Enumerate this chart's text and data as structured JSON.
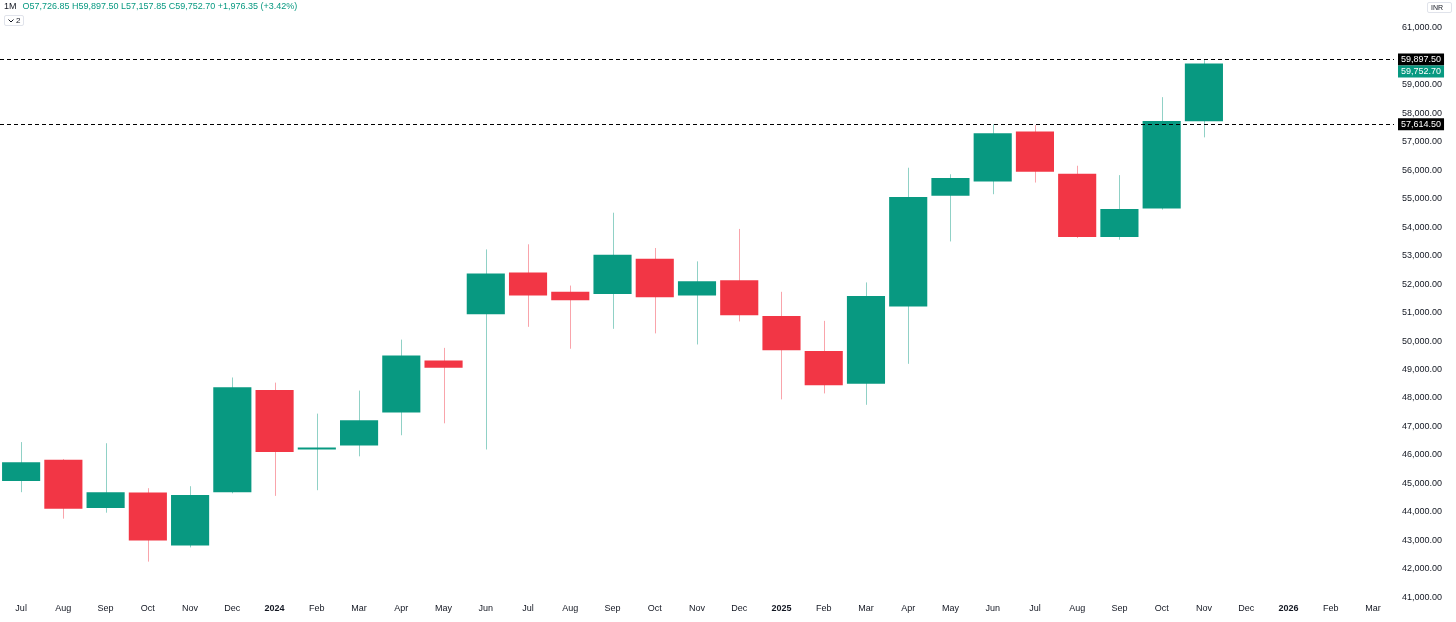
{
  "chart_data": {
    "type": "candlestick",
    "categories": [
      "Jul",
      "Aug",
      "Sep",
      "Oct",
      "Nov",
      "Dec",
      "2024",
      "Feb",
      "Mar",
      "Apr",
      "May",
      "Jun",
      "Jul",
      "Aug",
      "Sep",
      "Oct",
      "Nov",
      "Dec",
      "2025",
      "Feb",
      "Mar",
      "Apr",
      "May",
      "Jun",
      "Jul",
      "Aug",
      "Sep",
      "Oct",
      "Nov",
      "Dec",
      "2026",
      "Feb",
      "Mar"
    ],
    "ohlc": [
      [
        45080,
        46450,
        44690,
        45740
      ],
      [
        45830,
        45850,
        43760,
        44110
      ],
      [
        44130,
        46410,
        43970,
        44690
      ],
      [
        44680,
        44830,
        42250,
        42990
      ],
      [
        42820,
        44900,
        42750,
        44590
      ],
      [
        44690,
        48720,
        44650,
        48380
      ],
      [
        48280,
        48540,
        44560,
        46100
      ],
      [
        46190,
        47450,
        44760,
        46250
      ],
      [
        46330,
        48260,
        45950,
        47220
      ],
      [
        47490,
        50050,
        46690,
        49490
      ],
      [
        49320,
        49760,
        47110,
        49060
      ],
      [
        50940,
        53220,
        46190,
        52370
      ],
      [
        52410,
        53400,
        50500,
        51600
      ],
      [
        51730,
        51950,
        49730,
        51430
      ],
      [
        51650,
        54510,
        50430,
        53030
      ],
      [
        52890,
        53270,
        50270,
        51540
      ],
      [
        51600,
        52800,
        49880,
        52100
      ],
      [
        52140,
        53940,
        50690,
        50910
      ],
      [
        50880,
        51730,
        47950,
        49680
      ],
      [
        49650,
        50710,
        48160,
        48450
      ],
      [
        48500,
        52060,
        47760,
        51580
      ],
      [
        51210,
        56090,
        49200,
        55060
      ],
      [
        55110,
        55860,
        53500,
        55730
      ],
      [
        55610,
        57614.5,
        55160,
        57300
      ],
      [
        57360,
        57590,
        55570,
        55950
      ],
      [
        55880,
        56160,
        53620,
        53660
      ],
      [
        53660,
        55830,
        53560,
        54640
      ],
      [
        54660,
        58570,
        54620,
        57730
      ],
      [
        57726.85,
        59897.5,
        57157.85,
        59752.7
      ],
      null,
      null,
      null,
      null
    ],
    "colors": [
      "#089981",
      "#f23645",
      "#089981",
      "#f23645",
      "#089981",
      "#089981",
      "#f23645",
      "#089981",
      "#089981",
      "#089981",
      "#f23645",
      "#089981",
      "#f23645",
      "#f23645",
      "#089981",
      "#f23645",
      "#089981",
      "#f23645",
      "#f23645",
      "#f23645",
      "#089981",
      "#089981",
      "#089981",
      "#089981",
      "#f23645",
      "#f23645",
      "#089981",
      "#089981",
      "#089981",
      null,
      null,
      null,
      null
    ],
    "ylim": [
      41000,
      61000
    ],
    "yticks": [
      {
        "value": 41000,
        "label": "41,000.00"
      },
      {
        "value": 42000,
        "label": "42,000.00"
      },
      {
        "value": 43000,
        "label": "43,000.00"
      },
      {
        "value": 44000,
        "label": "44,000.00"
      },
      {
        "value": 45000,
        "label": "45,000.00"
      },
      {
        "value": 46000,
        "label": "46,000.00"
      },
      {
        "value": 47000,
        "label": "47,000.00"
      },
      {
        "value": 48000,
        "label": "48,000.00"
      },
      {
        "value": 49000,
        "label": "49,000.00"
      },
      {
        "value": 50000,
        "label": "50,000.00"
      },
      {
        "value": 51000,
        "label": "51,000.00"
      },
      {
        "value": 52000,
        "label": "52,000.00"
      },
      {
        "value": 53000,
        "label": "53,000.00"
      },
      {
        "value": 54000,
        "label": "54,000.00"
      },
      {
        "value": 55000,
        "label": "55,000.00"
      },
      {
        "value": 56000,
        "label": "56,000.00"
      },
      {
        "value": 57000,
        "label": "57,000.00"
      },
      {
        "value": 58000,
        "label": "58,000.00"
      },
      {
        "value": 59000,
        "label": "59,000.00"
      },
      {
        "value": 61000,
        "label": "61,000.00"
      }
    ],
    "grid": false,
    "ref_lines": [
      {
        "axis": "y",
        "value": 59897.5,
        "label": "59,897.50",
        "color": "#000000",
        "line_style": "dashed"
      },
      {
        "axis": "y",
        "value": 57614.5,
        "label": "57,614.50",
        "color": "#000000",
        "line_style": "dashed"
      }
    ],
    "annotations": [
      "1M",
      "O57,726.85 H59,897.50 L57,157.85 C59,752.70 +1,976.35 (+3.42%)",
      "2",
      "INR",
      "59,752.70"
    ]
  }
}
